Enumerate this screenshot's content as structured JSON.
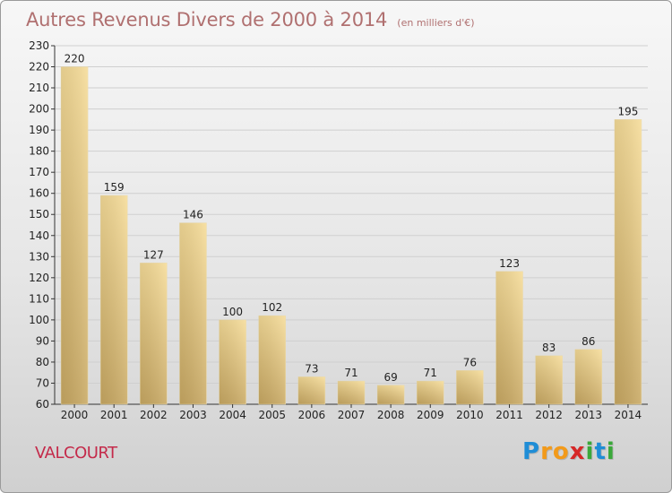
{
  "chart_data": {
    "type": "bar",
    "title": "Autres Revenus Divers de 2000 à 2014",
    "subtitle": "(en milliers d'€)",
    "categories": [
      "2000",
      "2001",
      "2002",
      "2003",
      "2004",
      "2005",
      "2006",
      "2007",
      "2008",
      "2009",
      "2010",
      "2011",
      "2012",
      "2013",
      "2014"
    ],
    "values": [
      220,
      159,
      127,
      146,
      100,
      102,
      73,
      71,
      69,
      71,
      76,
      123,
      83,
      86,
      195
    ],
    "ylim": [
      60,
      230
    ],
    "ytick_step": 10,
    "grid": true,
    "bar_color": "#e8cc7e"
  },
  "place_name": "VALCOURT",
  "logo": {
    "letters": [
      "P",
      "r",
      "o",
      "x",
      "i",
      "t",
      "i"
    ],
    "colors": [
      "#1f8dd6",
      "#f29a1a",
      "#f29a1a",
      "#d62828",
      "#3aa83a",
      "#1f8dd6",
      "#3aa83a"
    ]
  }
}
